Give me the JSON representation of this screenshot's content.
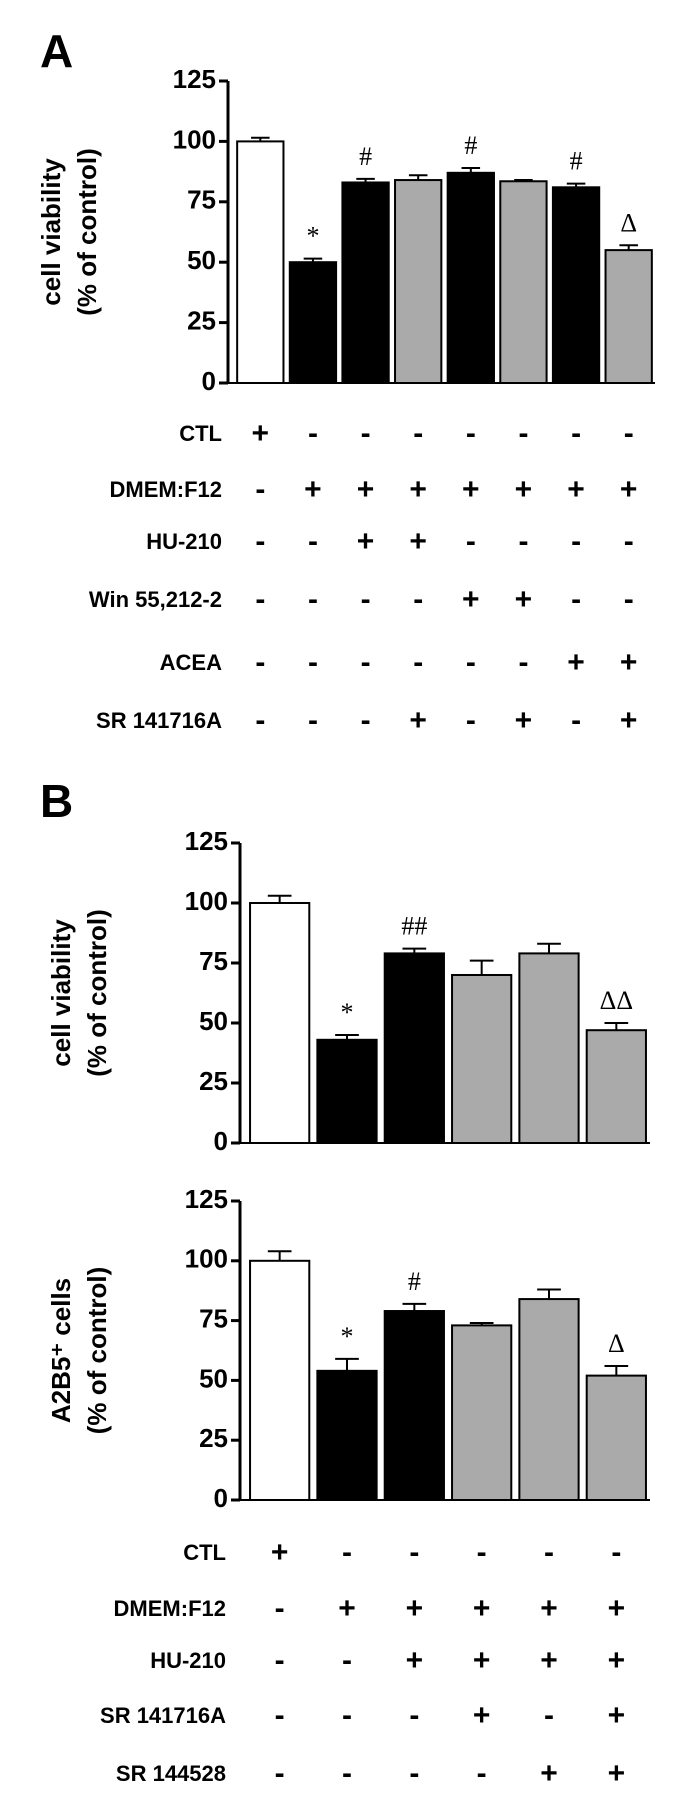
{
  "panels": [
    "A",
    "B"
  ],
  "chart_data": [
    {
      "type": "bar",
      "ylabel": [
        "cell viability",
        "(% of control)"
      ],
      "categories": [
        null,
        null,
        null,
        null,
        null,
        null,
        null,
        null
      ],
      "values": [
        100,
        50,
        83,
        84,
        87,
        83.5,
        81,
        55
      ],
      "errors": [
        1.5,
        1.5,
        1.5,
        2,
        2,
        0.5,
        1.5,
        2
      ],
      "colors": [
        "#ffffff",
        "#000000",
        "#000000",
        "#aaaaaa",
        "#000000",
        "#aaaaaa",
        "#000000",
        "#aaaaaa"
      ],
      "markers": [
        null,
        "*",
        "#",
        null,
        "#",
        null,
        "#",
        "Δ"
      ],
      "ylim": [
        0,
        125
      ],
      "yticks": [
        0,
        25,
        50,
        75,
        100,
        125
      ]
    },
    {
      "type": "bar",
      "ylabel": [
        "cell viability",
        "(% of control)"
      ],
      "categories": [
        null,
        null,
        null,
        null,
        null,
        null
      ],
      "values": [
        100,
        43,
        79,
        70,
        79,
        47
      ],
      "errors": [
        3,
        2,
        2,
        6,
        4,
        3
      ],
      "colors": [
        "#ffffff",
        "#000000",
        "#000000",
        "#aaaaaa",
        "#aaaaaa",
        "#aaaaaa"
      ],
      "markers": [
        null,
        "*",
        "##",
        null,
        null,
        "ΔΔ"
      ],
      "ylim": [
        0,
        125
      ],
      "yticks": [
        0,
        25,
        50,
        75,
        100,
        125
      ]
    },
    {
      "type": "bar",
      "ylabel": [
        "A2B5⁺ cells",
        "(% of control)"
      ],
      "categories": [
        null,
        null,
        null,
        null,
        null,
        null
      ],
      "values": [
        100,
        54,
        79,
        73,
        84,
        52
      ],
      "errors": [
        4,
        5,
        3,
        1,
        4,
        4
      ],
      "colors": [
        "#ffffff",
        "#000000",
        "#000000",
        "#aaaaaa",
        "#aaaaaa",
        "#aaaaaa"
      ],
      "markers": [
        null,
        "*",
        "#",
        null,
        null,
        "Δ"
      ],
      "ylim": [
        0,
        125
      ],
      "yticks": [
        0,
        25,
        50,
        75,
        100,
        125
      ]
    }
  ],
  "tables": [
    {
      "rows": [
        {
          "label": "CTL",
          "cells": [
            "+",
            "-",
            "-",
            "-",
            "-",
            "-",
            "-",
            "-"
          ]
        },
        {
          "label": "DMEM:F12",
          "cells": [
            "-",
            "+",
            "+",
            "+",
            "+",
            "+",
            "+",
            "+"
          ]
        },
        {
          "label": "HU-210",
          "cells": [
            "-",
            "-",
            "+",
            "+",
            "-",
            "-",
            "-",
            "-"
          ]
        },
        {
          "label": "Win 55,212-2",
          "cells": [
            "-",
            "-",
            "-",
            "-",
            "+",
            "+",
            "-",
            "-"
          ]
        },
        {
          "label": "ACEA",
          "cells": [
            "-",
            "-",
            "-",
            "-",
            "-",
            "-",
            "+",
            "+"
          ]
        },
        {
          "label": "SR 141716A",
          "cells": [
            "-",
            "-",
            "-",
            "+",
            "-",
            "+",
            "-",
            "+"
          ]
        }
      ]
    },
    {
      "rows": [
        {
          "label": "CTL",
          "cells": [
            "+",
            "-",
            "-",
            "-",
            "-",
            "-"
          ]
        },
        {
          "label": "DMEM:F12",
          "cells": [
            "-",
            "+",
            "+",
            "+",
            "+",
            "+"
          ]
        },
        {
          "label": "HU-210",
          "cells": [
            "-",
            "-",
            "+",
            "+",
            "+",
            "+"
          ]
        },
        {
          "label": "SR 141716A",
          "cells": [
            "-",
            "-",
            "-",
            "+",
            "-",
            "+"
          ]
        },
        {
          "label": "SR 144528",
          "cells": [
            "-",
            "-",
            "-",
            "-",
            "+",
            "+"
          ]
        }
      ]
    }
  ]
}
